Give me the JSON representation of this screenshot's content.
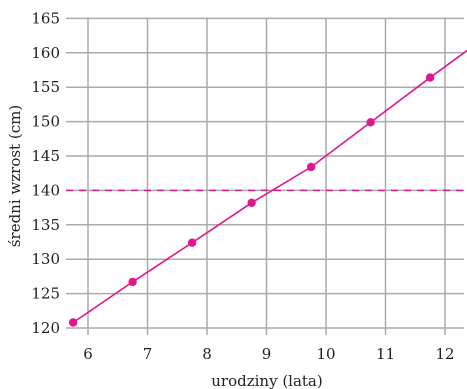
{
  "chart_data": {
    "type": "line",
    "title": "",
    "xlabel": "urodziny (lata)",
    "ylabel": "średni wzrost (cm)",
    "xlim": [
      5.7,
      12.4
    ],
    "ylim": [
      119,
      165
    ],
    "xticks": [
      6,
      7,
      8,
      9,
      10,
      11,
      12
    ],
    "yticks": [
      120,
      125,
      130,
      135,
      140,
      145,
      150,
      155,
      160,
      165
    ],
    "grid": true,
    "legend": "none",
    "series": [
      {
        "x": [
          5.75,
          6.75,
          7.75,
          8.75,
          9.75,
          10.75,
          11.75
        ],
        "values": [
          120.8,
          126.7,
          132.4,
          138.2,
          143.4,
          149.9,
          156.4
        ],
        "color": "#e0168c",
        "markers": true,
        "line_extends_to_x": 12.4,
        "line_extends_to_y": 160.5
      }
    ],
    "reference_line": {
      "orientation": "horizontal",
      "y": 140,
      "style": "dashed",
      "color": "#e0168c"
    }
  }
}
